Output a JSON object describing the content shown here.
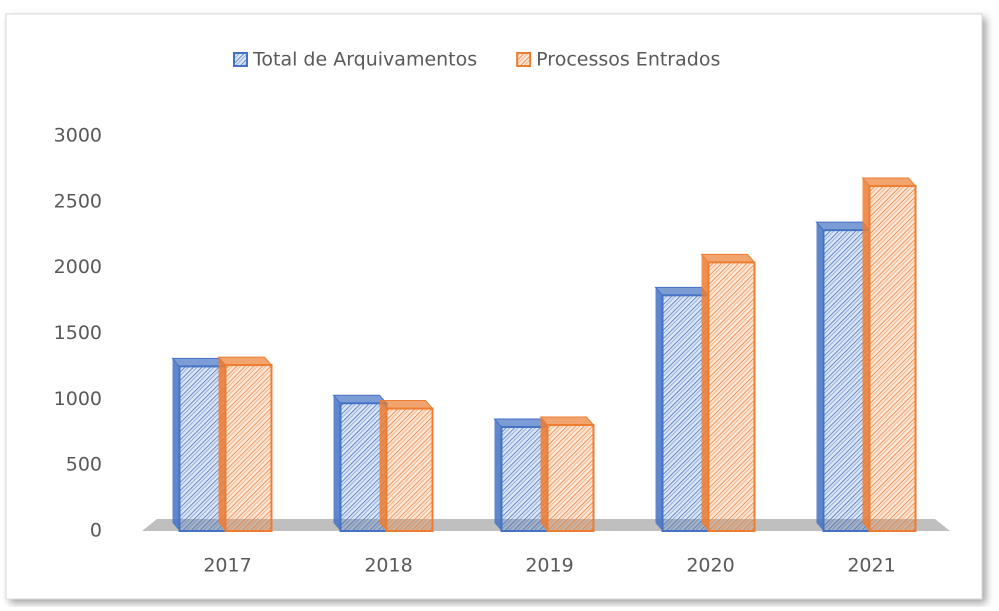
{
  "chart_data": {
    "type": "bar3d",
    "categories": [
      "2017",
      "2018",
      "2019",
      "2020",
      "2021"
    ],
    "series": [
      {
        "name": "Total de Arquivamentos",
        "color": "#4472c4",
        "values": [
          1250,
          970,
          790,
          1790,
          2285
        ]
      },
      {
        "name": "Processos Entrados",
        "color": "#ed7d31",
        "values": [
          1260,
          930,
          805,
          2040,
          2620
        ]
      }
    ],
    "ylim": [
      0,
      3000
    ],
    "yticks": [
      0,
      500,
      1000,
      1500,
      2000,
      2500,
      3000
    ],
    "legend": "top",
    "grid": false
  }
}
